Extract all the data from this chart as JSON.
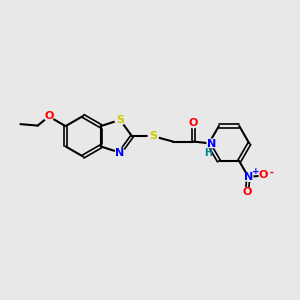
{
  "background_color": "#e8e8e8",
  "bond_color": "#000000",
  "atom_colors": {
    "S": "#cccc00",
    "N": "#0000ff",
    "O": "#ff0000",
    "C": "#000000",
    "H": "#008080"
  },
  "figsize": [
    3.0,
    3.0
  ],
  "dpi": 100,
  "xlim": [
    0,
    10
  ],
  "ylim": [
    0,
    10
  ]
}
